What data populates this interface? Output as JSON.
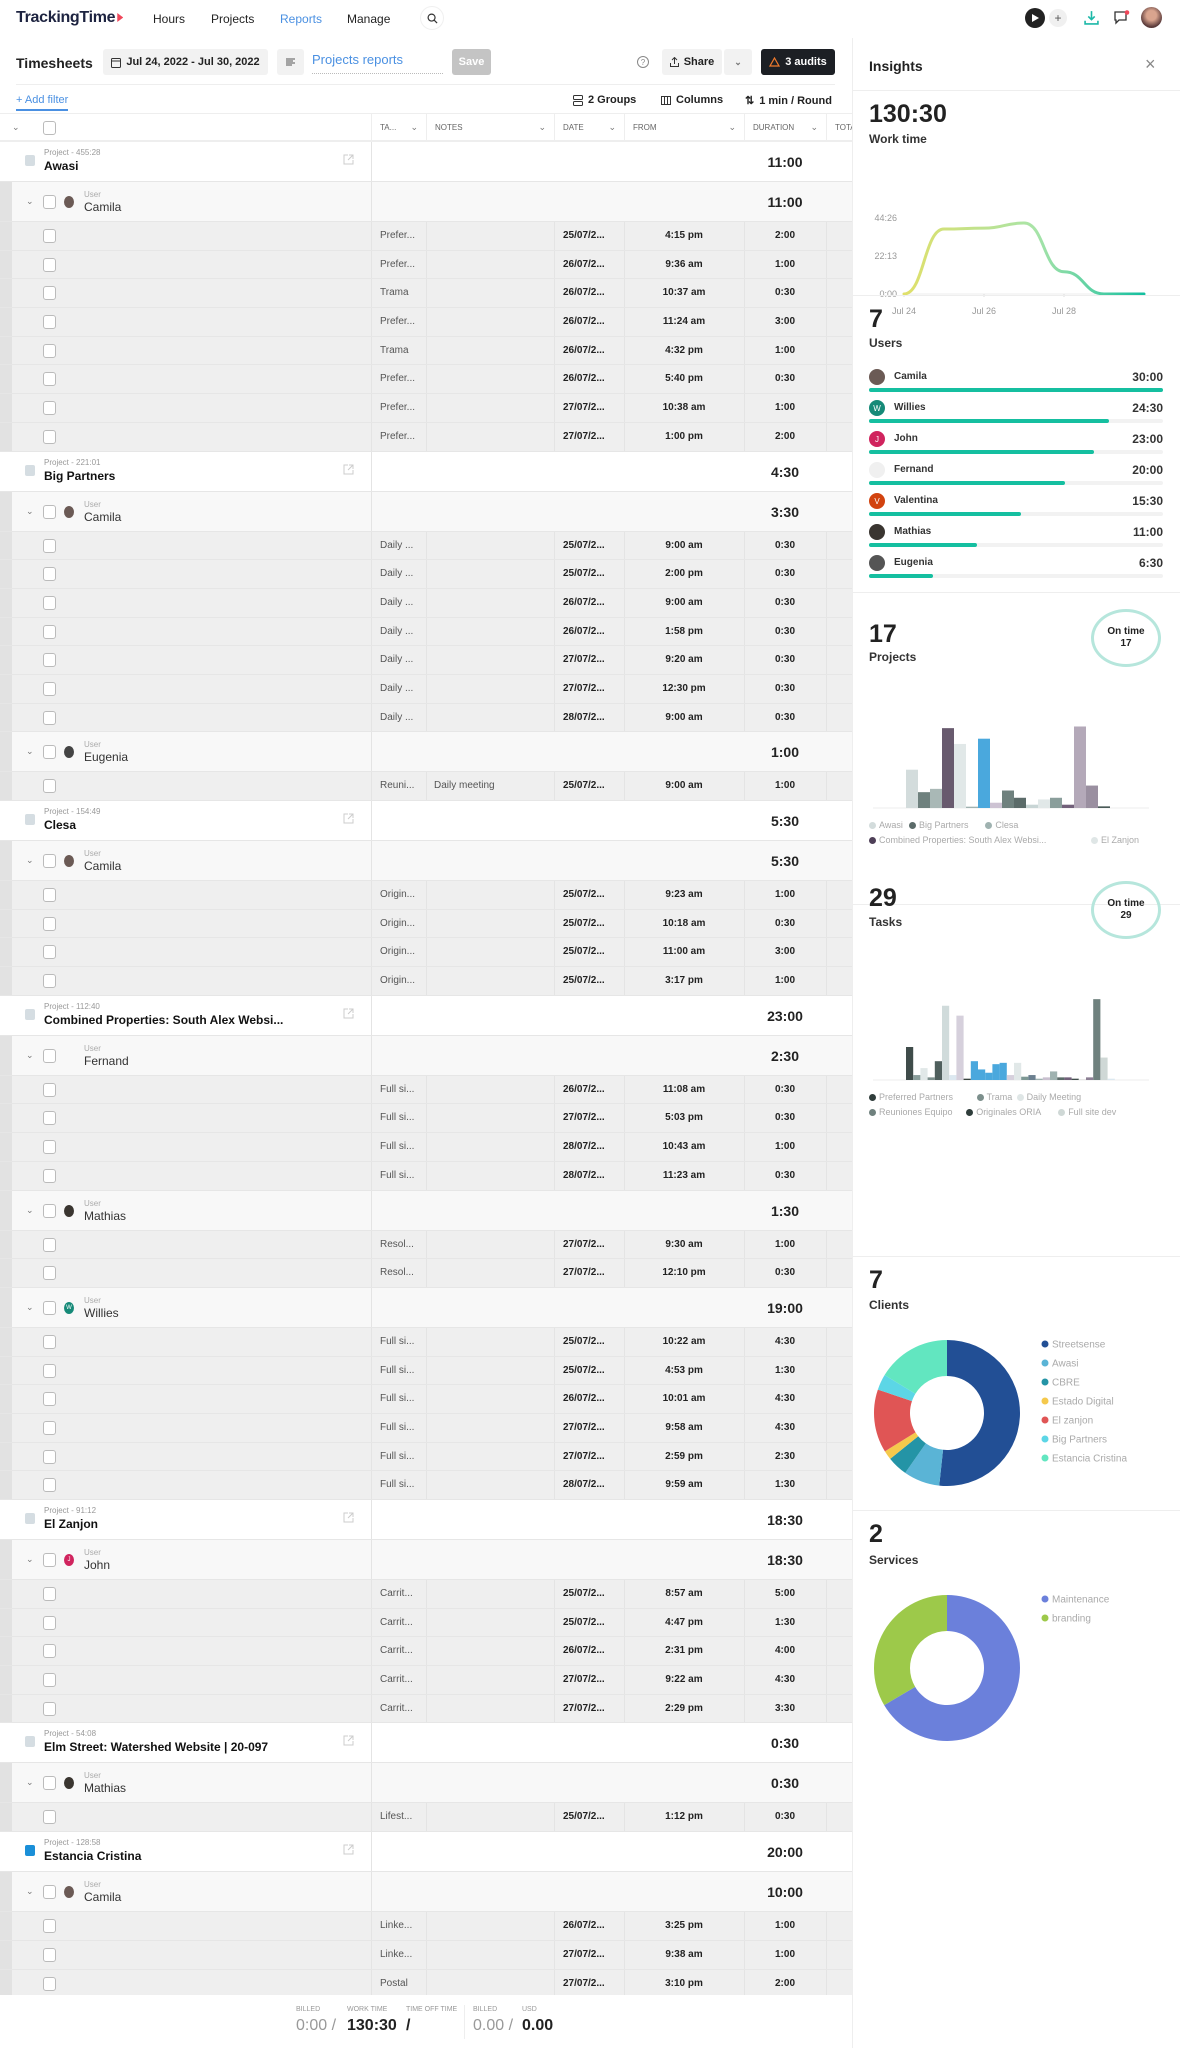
{
  "nav": {
    "logo": "TrackingTime",
    "items": [
      "Hours",
      "Projects",
      "Reports",
      "Manage"
    ],
    "active": "Reports"
  },
  "toolbar": {
    "title": "Timesheets",
    "date_range": "Jul 24, 2022 - Jul 30, 2022",
    "report_name": "Projects reports",
    "save": "Save",
    "share": "Share",
    "audits": "3 audits",
    "add_filter": "+ Add filter",
    "groups": "2 Groups",
    "columns": "Columns",
    "rounding": "1 min / Round"
  },
  "columns": [
    "TA...",
    "NOTES",
    "DATE",
    "FROM",
    "DURATION",
    "TOTA"
  ],
  "groups": [
    {
      "label": "Project - 455:28",
      "name": "Awasi",
      "total": "11:00",
      "color": "#d5dde2",
      "users": [
        {
          "name": "Camila",
          "total": "11:00",
          "avatar": "#6b5a55",
          "initial": "",
          "entries": [
            [
              "Prefer...",
              "",
              "25/07/2...",
              "4:15 pm",
              "2:00"
            ],
            [
              "Prefer...",
              "",
              "26/07/2...",
              "9:36 am",
              "1:00"
            ],
            [
              "Trama",
              "",
              "26/07/2...",
              "10:37 am",
              "0:30"
            ],
            [
              "Prefer...",
              "",
              "26/07/2...",
              "11:24 am",
              "3:00"
            ],
            [
              "Trama",
              "",
              "26/07/2...",
              "4:32 pm",
              "1:00"
            ],
            [
              "Prefer...",
              "",
              "26/07/2...",
              "5:40 pm",
              "0:30"
            ],
            [
              "Prefer...",
              "",
              "27/07/2...",
              "10:38 am",
              "1:00"
            ],
            [
              "Prefer...",
              "",
              "27/07/2...",
              "1:00 pm",
              "2:00"
            ]
          ]
        }
      ]
    },
    {
      "label": "Project - 221:01",
      "name": "Big Partners",
      "total": "4:30",
      "color": "#d5dde2",
      "users": [
        {
          "name": "Camila",
          "total": "3:30",
          "avatar": "#6b5a55",
          "initial": "",
          "entries": [
            [
              "Daily ...",
              "",
              "25/07/2...",
              "9:00 am",
              "0:30"
            ],
            [
              "Daily ...",
              "",
              "25/07/2...",
              "2:00 pm",
              "0:30"
            ],
            [
              "Daily ...",
              "",
              "26/07/2...",
              "9:00 am",
              "0:30"
            ],
            [
              "Daily ...",
              "",
              "26/07/2...",
              "1:58 pm",
              "0:30"
            ],
            [
              "Daily ...",
              "",
              "27/07/2...",
              "9:20 am",
              "0:30"
            ],
            [
              "Daily ...",
              "",
              "27/07/2...",
              "12:30 pm",
              "0:30"
            ],
            [
              "Daily ...",
              "",
              "28/07/2...",
              "9:00 am",
              "0:30"
            ]
          ]
        },
        {
          "name": "Eugenia",
          "total": "1:00",
          "avatar": "#444",
          "initial": "",
          "entries": [
            [
              "Reuni...",
              "Daily meeting",
              "25/07/2...",
              "9:00 am",
              "1:00"
            ]
          ]
        }
      ]
    },
    {
      "label": "Project - 154:49",
      "name": "Clesa",
      "total": "5:30",
      "color": "#d5dde2",
      "users": [
        {
          "name": "Camila",
          "total": "5:30",
          "avatar": "#6b5a55",
          "initial": "",
          "entries": [
            [
              "Origin...",
              "",
              "25/07/2...",
              "9:23 am",
              "1:00"
            ],
            [
              "Origin...",
              "",
              "25/07/2...",
              "10:18 am",
              "0:30"
            ],
            [
              "Origin...",
              "",
              "25/07/2...",
              "11:00 am",
              "3:00"
            ],
            [
              "Origin...",
              "",
              "25/07/2...",
              "3:17 pm",
              "1:00"
            ]
          ]
        }
      ]
    },
    {
      "label": "Project - 112:40",
      "name": "Combined Properties: South Alex Websi...",
      "total": "23:00",
      "color": "#d5dde2",
      "users": [
        {
          "name": "Fernand",
          "total": "2:30",
          "avatar": "",
          "initial": "",
          "entries": [
            [
              "Full si...",
              "",
              "26/07/2...",
              "11:08 am",
              "0:30"
            ],
            [
              "Full si...",
              "",
              "27/07/2...",
              "5:03 pm",
              "0:30"
            ],
            [
              "Full si...",
              "",
              "28/07/2...",
              "10:43 am",
              "1:00"
            ],
            [
              "Full si...",
              "",
              "28/07/2...",
              "11:23 am",
              "0:30"
            ]
          ]
        },
        {
          "name": "Mathias",
          "total": "1:30",
          "avatar": "#3a3530",
          "initial": "",
          "entries": [
            [
              "Resol...",
              "",
              "27/07/2...",
              "9:30 am",
              "1:00"
            ],
            [
              "Resol...",
              "",
              "27/07/2...",
              "12:10 pm",
              "0:30"
            ]
          ]
        },
        {
          "name": "Willies",
          "total": "19:00",
          "avatar": "#168a78",
          "initial": "W",
          "entries": [
            [
              "Full si...",
              "",
              "25/07/2...",
              "10:22 am",
              "4:30"
            ],
            [
              "Full si...",
              "",
              "25/07/2...",
              "4:53 pm",
              "1:30"
            ],
            [
              "Full si...",
              "",
              "26/07/2...",
              "10:01 am",
              "4:30"
            ],
            [
              "Full si...",
              "",
              "27/07/2...",
              "9:58 am",
              "4:30"
            ],
            [
              "Full si...",
              "",
              "27/07/2...",
              "2:59 pm",
              "2:30"
            ],
            [
              "Full si...",
              "",
              "28/07/2...",
              "9:59 am",
              "1:30"
            ]
          ]
        }
      ]
    },
    {
      "label": "Project - 91:12",
      "name": "El Zanjon",
      "total": "18:30",
      "color": "#d5dde2",
      "users": [
        {
          "name": "John",
          "total": "18:30",
          "avatar": "#d0245e",
          "initial": "J",
          "entries": [
            [
              "Carrit...",
              "",
              "25/07/2...",
              "8:57 am",
              "5:00"
            ],
            [
              "Carrit...",
              "",
              "25/07/2...",
              "4:47 pm",
              "1:30"
            ],
            [
              "Carrit...",
              "",
              "26/07/2...",
              "2:31 pm",
              "4:00"
            ],
            [
              "Carrit...",
              "",
              "27/07/2...",
              "9:22 am",
              "4:30"
            ],
            [
              "Carrit...",
              "",
              "27/07/2...",
              "2:29 pm",
              "3:30"
            ]
          ]
        }
      ]
    },
    {
      "label": "Project - 54:08",
      "name": "Elm Street: Watershed Website | 20-097",
      "total": "0:30",
      "color": "#d5dde2",
      "users": [
        {
          "name": "Mathias",
          "total": "0:30",
          "avatar": "#3a3530",
          "initial": "",
          "entries": [
            [
              "Lifest...",
              "",
              "25/07/2...",
              "1:12 pm",
              "0:30"
            ]
          ]
        }
      ]
    },
    {
      "label": "Project - 128:58",
      "name": "Estancia Cristina",
      "total": "20:00",
      "color": "#1a8fd8",
      "users": [
        {
          "name": "Camila",
          "total": "10:00",
          "avatar": "#6b5a55",
          "initial": "",
          "entries": [
            [
              "Linke...",
              "",
              "26/07/2...",
              "3:25 pm",
              "1:00"
            ],
            [
              "Linke...",
              "",
              "27/07/2...",
              "9:38 am",
              "1:00"
            ],
            [
              "Postal",
              "",
              "27/07/2...",
              "3:10 pm",
              "2:00"
            ]
          ]
        }
      ]
    }
  ],
  "user_label": "User",
  "footer": {
    "billed_label": "BILLED",
    "billed": "0:00 /",
    "work_label": "WORK TIME",
    "work": "130:30",
    "timeoff_label": "TIME OFF TIME",
    "timeoff": "/",
    "billed2_label": "BILLED",
    "billed2": "0.00 /",
    "usd_label": "USD",
    "usd": "0.00"
  },
  "insights": {
    "title": "Insights",
    "work_time": {
      "value": "130:30",
      "label": "Work time"
    },
    "users": {
      "count": "7",
      "label": "Users",
      "items": [
        {
          "name": "Camila",
          "value": "30:00",
          "progress": 1.0,
          "color": "#6b5a55",
          "initial": ""
        },
        {
          "name": "Willies",
          "value": "24:30",
          "progress": 0.817,
          "color": "#168a78",
          "initial": "W"
        },
        {
          "name": "John",
          "value": "23:00",
          "progress": 0.767,
          "color": "#d0245e",
          "initial": "J"
        },
        {
          "name": "Fernand",
          "value": "20:00",
          "progress": 0.667,
          "color": "#f0f0f0",
          "initial": ""
        },
        {
          "name": "Valentina",
          "value": "15:30",
          "progress": 0.517,
          "color": "#d2430f",
          "initial": "V"
        },
        {
          "name": "Mathias",
          "value": "11:00",
          "progress": 0.367,
          "color": "#3a3530",
          "initial": ""
        },
        {
          "name": "Eugenia",
          "value": "6:30",
          "progress": 0.217,
          "color": "#555",
          "initial": ""
        }
      ]
    },
    "projects": {
      "count": "17",
      "label": "Projects",
      "ontime_label": "On time",
      "ontime": "17"
    },
    "tasks": {
      "count": "29",
      "label": "Tasks",
      "ontime_label": "On time",
      "ontime": "29"
    },
    "clients": {
      "count": "7",
      "label": "Clients"
    },
    "services": {
      "count": "2",
      "label": "Services"
    }
  },
  "chart_data": [
    {
      "type": "line",
      "x": [
        "Jul 24",
        "Jul 25",
        "Jul 26",
        "Jul 27",
        "Jul 28",
        "Jul 29",
        "Jul 30"
      ],
      "values_hours": [
        0,
        38,
        38.5,
        41.5,
        13,
        0,
        0
      ],
      "yticks": [
        "0:00",
        "22:13",
        "44:26"
      ],
      "xticks": [
        "Jul 24",
        "Jul 26",
        "Jul 28"
      ],
      "ylim": [
        0,
        44.43
      ],
      "colors": [
        "#e0e06a",
        "#15bfa0"
      ]
    },
    {
      "type": "bar",
      "legend": [
        "Awasi",
        "Big Partners",
        "Clesa",
        "Combined Properties: South Alex Websi...",
        "El Zanjon"
      ],
      "legend_colors": [
        "#d3dcdc",
        "#5b6b69",
        "#9fb2b0",
        "#4e3f57",
        "#dfe6e6"
      ],
      "values": [
        116,
        48,
        58,
        242,
        194,
        4,
        210,
        16,
        53,
        31,
        10,
        26,
        31,
        10,
        247,
        68,
        5
      ],
      "colors": [
        "#d3dcdc",
        "#6f817e",
        "#a9b8b6",
        "#685a6e",
        "#e1e8e8",
        "#9fb2b0",
        "#4aa8dd",
        "#cdc3d3",
        "#6f817e",
        "#5b6b69",
        "#c8d5d5",
        "#e1e8e8",
        "#8a9e9b",
        "#72607a",
        "#b4a9b9",
        "#9a8fa0",
        "#4a5a58"
      ]
    },
    {
      "type": "bar",
      "legend": [
        "Preferred Partners",
        "Trama",
        "Daily Meeting",
        "Reuniones Equipo",
        "Originales ORIA",
        "Full site dev"
      ],
      "legend_colors": [
        "#2f3d3b",
        "#7c8f8c",
        "#dfe6e6",
        "#6f817e",
        "#2f3d3b",
        "#cfd8d6"
      ],
      "values": [
        100,
        15,
        36,
        8,
        57,
        225,
        15,
        195,
        4,
        57,
        32,
        22,
        48,
        52,
        15,
        52,
        10,
        15,
        4,
        8,
        26,
        8,
        8,
        4,
        3,
        8,
        245,
        68,
        4
      ],
      "colors": [
        "#3f4c4a",
        "#8a9e9b",
        "#e1e8e8",
        "#7c8f8c",
        "#4f5f5d",
        "#d0dbdb",
        "#dce8f0",
        "#d6d0dc",
        "#39443f",
        "#4aa8dd",
        "#4aa8dd",
        "#4aa8dd",
        "#4aa8dd",
        "#4aa8dd",
        "#d6d0dc",
        "#e1e8e8",
        "#7d9894",
        "#6c8090",
        "#9fb2b0",
        "#c9c0cf",
        "#9fb2b0",
        "#5b6b69",
        "#72607a",
        "#3f4c4a",
        "#e6e6e6",
        "#8c7f94",
        "#6f817e",
        "#cfd8d6",
        "#dce8f0"
      ]
    },
    {
      "type": "pie",
      "labels": [
        "Streetsense",
        "Awasi",
        "CBRE",
        "Estado Digital",
        "El zanjon",
        "Big Partners",
        "Estancia Cristina"
      ],
      "values": [
        51.7,
        8,
        4.5,
        2,
        14,
        3.5,
        16.3
      ],
      "colors": [
        "#224f95",
        "#5ab4d6",
        "#2494a6",
        "#f5c94c",
        "#e05555",
        "#5cd6e6",
        "#62e6c0"
      ]
    },
    {
      "type": "pie",
      "labels": [
        "Maintenance",
        "branding"
      ],
      "values": [
        66.5,
        33.5
      ],
      "colors": [
        "#6b80db",
        "#9dc94a"
      ]
    }
  ]
}
